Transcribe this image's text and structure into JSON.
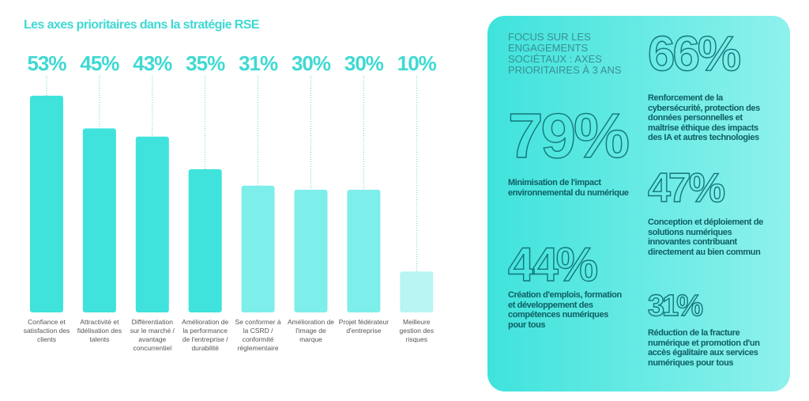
{
  "chart_data": {
    "type": "bar",
    "title": "Les axes prioritaires dans la stratégie RSE",
    "categories": [
      "Confiance et satisfaction des clients",
      "Attractivité et fidélisation des talents",
      "Différentiation sur le marché / avantage concurrentiel",
      "Amélioration de la performance de l'entreprise / durabilité",
      "Se conformer à la CSRD / conformité réglementaire",
      "Amélioration de l'image de marque",
      "Projet fédérateur d'entreprise",
      "Meilleure gestion des risques"
    ],
    "values": [
      53,
      45,
      43,
      35,
      31,
      30,
      30,
      10
    ],
    "value_labels": [
      "53%",
      "45%",
      "43%",
      "35%",
      "31%",
      "30%",
      "30%",
      "10%"
    ],
    "colors": [
      "#3fe3dc",
      "#3fe3dc",
      "#3fe3dc",
      "#3fe3dc",
      "#7deee9",
      "#7deee9",
      "#7deee9",
      "#b9f5f2"
    ]
  },
  "focus": {
    "title": "FOCUS SUR LES ENGAGEMENTS SOCIÉTAUX : AXES PRIORITAIRES À 3 ANS",
    "items": [
      {
        "value": "66%",
        "text": "Renforcement de la cybersécurité, protection des données personnelles et maîtrise éthique des impacts des IA et autres technologies"
      },
      {
        "value": "79%",
        "text": "Minimisation de l'impact environnemental du numérique"
      },
      {
        "value": "47%",
        "text": "Conception et déploiement de solutions numériques innovantes contribuant directement au bien commun"
      },
      {
        "value": "44%",
        "text": "Création d'emplois, formation et développement des compétences numériques pour tous"
      },
      {
        "value": "31%",
        "text": "Réduction de la fracture numérique et promotion d'un accès égalitaire aux services numériques pour tous"
      }
    ]
  }
}
